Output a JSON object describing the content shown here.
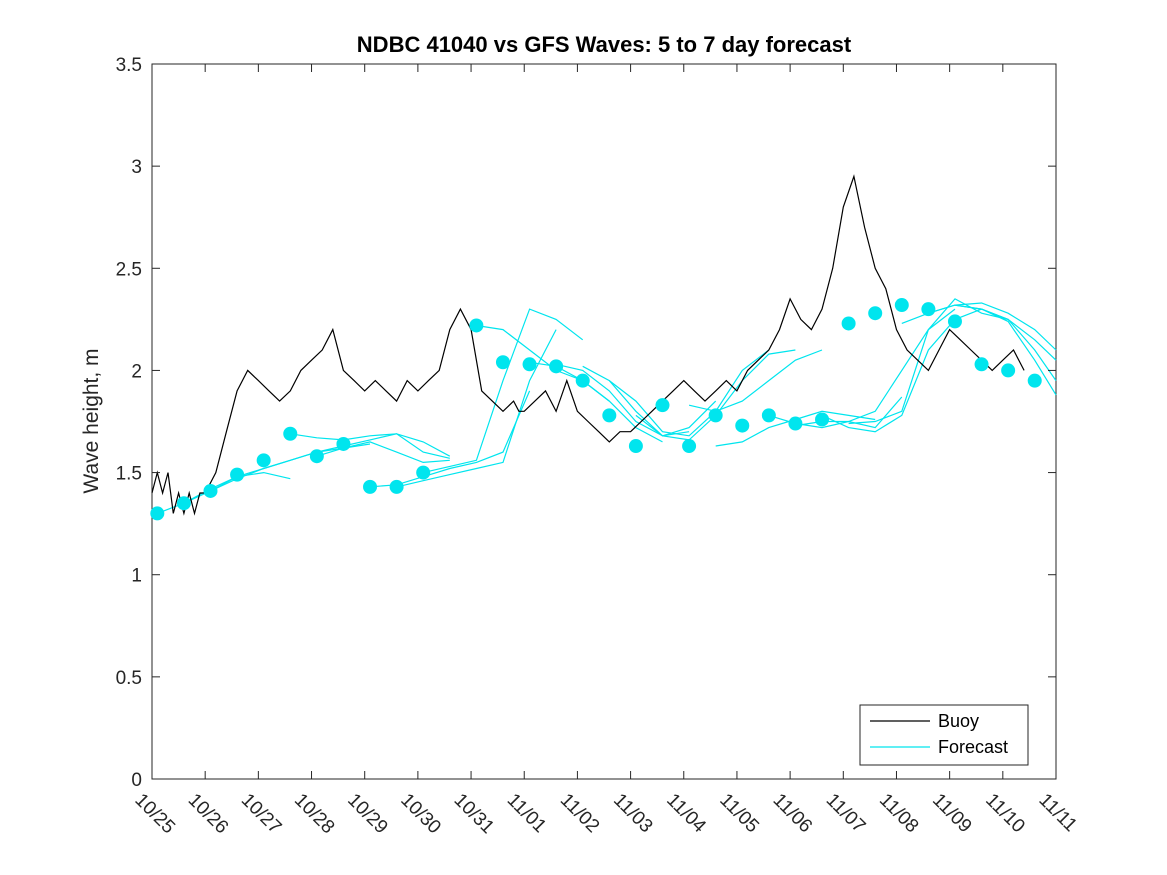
{
  "chart_data": {
    "type": "line",
    "title": "NDBC 41040 vs GFS Waves: 5 to 7 day forecast",
    "xlabel": "",
    "ylabel": "Wave height, m",
    "xlim": [
      0,
      17
    ],
    "ylim": [
      0,
      3.5
    ],
    "x_tick_labels": [
      "10/25",
      "10/26",
      "10/27",
      "10/28",
      "10/29",
      "10/30",
      "10/31",
      "11/01",
      "11/02",
      "11/03",
      "11/04",
      "11/05",
      "11/06",
      "11/07",
      "11/08",
      "11/09",
      "11/10",
      "11/11"
    ],
    "y_ticks": [
      0,
      0.5,
      1,
      1.5,
      2,
      2.5,
      3,
      3.5
    ],
    "y_tick_labels": [
      "0",
      "0.5",
      "1",
      "1.5",
      "2",
      "2.5",
      "3",
      "3.5"
    ],
    "colors": {
      "buoy": "#000000",
      "forecast": "#00e5ee",
      "axes": "#262626"
    },
    "legend": {
      "location": "bottom-right",
      "entries": [
        "Buoy",
        "Forecast"
      ]
    },
    "buoy": {
      "name": "Buoy",
      "x": [
        0,
        0.1,
        0.2,
        0.3,
        0.4,
        0.5,
        0.6,
        0.7,
        0.8,
        0.9,
        1.0,
        1.2,
        1.4,
        1.6,
        1.8,
        2.0,
        2.2,
        2.4,
        2.6,
        2.8,
        3.0,
        3.2,
        3.4,
        3.6,
        3.8,
        4.0,
        4.2,
        4.4,
        4.6,
        4.8,
        5.0,
        5.2,
        5.4,
        5.6,
        5.8,
        6.0,
        6.2,
        6.4,
        6.6,
        6.8,
        6.9,
        7.0,
        7.2,
        7.4,
        7.6,
        7.8,
        8.0,
        8.2,
        8.4,
        8.6,
        8.8,
        9.0,
        9.2,
        9.4,
        9.6,
        9.8,
        10.0,
        10.2,
        10.4,
        10.6,
        10.8,
        11.0,
        11.2,
        11.4,
        11.6,
        11.8,
        12.0,
        12.2,
        12.4,
        12.6,
        12.8,
        13.0,
        13.2,
        13.4,
        13.6,
        13.8,
        14.0,
        14.2,
        14.4,
        14.6,
        14.8,
        15.0,
        15.2,
        15.4,
        15.6,
        15.8,
        16.0,
        16.2,
        16.4
      ],
      "y": [
        1.4,
        1.5,
        1.4,
        1.5,
        1.3,
        1.4,
        1.3,
        1.4,
        1.3,
        1.4,
        1.4,
        1.5,
        1.7,
        1.9,
        2.0,
        1.95,
        1.9,
        1.85,
        1.9,
        2.0,
        2.05,
        2.1,
        2.2,
        2.0,
        1.95,
        1.9,
        1.95,
        1.9,
        1.85,
        1.95,
        1.9,
        1.95,
        2.0,
        2.2,
        2.3,
        2.2,
        1.9,
        1.85,
        1.8,
        1.85,
        1.8,
        1.8,
        1.85,
        1.9,
        1.8,
        1.95,
        1.8,
        1.75,
        1.7,
        1.65,
        1.7,
        1.7,
        1.75,
        1.8,
        1.85,
        1.9,
        1.95,
        1.9,
        1.85,
        1.9,
        1.95,
        1.9,
        2.0,
        2.05,
        2.1,
        2.2,
        2.35,
        2.25,
        2.2,
        2.3,
        2.5,
        2.8,
        2.95,
        2.7,
        2.5,
        2.4,
        2.2,
        2.1,
        2.05,
        2.0,
        2.1,
        2.2,
        2.15,
        2.1,
        2.05,
        2.0,
        2.05,
        2.1,
        2.0
      ]
    },
    "forecast": {
      "name": "Forecast",
      "markers_x": [
        0.1,
        0.6,
        1.1,
        1.6,
        2.1,
        2.6,
        3.1,
        3.6,
        4.1,
        4.6,
        5.1,
        6.1,
        6.6,
        7.1,
        7.6,
        8.1,
        8.6,
        9.1,
        9.6,
        10.1,
        10.6,
        11.1,
        11.6,
        12.1,
        12.6,
        13.1,
        13.6,
        14.1,
        14.6,
        15.1,
        15.6,
        16.1,
        16.6
      ],
      "markers_y": [
        1.3,
        1.35,
        1.41,
        1.49,
        1.56,
        1.69,
        1.58,
        1.64,
        1.43,
        1.43,
        1.5,
        2.22,
        2.04,
        2.03,
        2.02,
        1.95,
        1.78,
        1.63,
        1.83,
        1.63,
        1.78,
        1.73,
        1.78,
        1.74,
        1.76,
        2.23,
        2.28,
        2.32,
        2.3,
        2.24,
        2.03,
        2.0,
        1.95
      ],
      "segments": [
        {
          "x": [
            0.1,
            0.6,
            1.1,
            1.6,
            2.1,
            2.6
          ],
          "y": [
            1.3,
            1.35,
            1.41,
            1.48,
            1.5,
            1.47
          ]
        },
        {
          "x": [
            0.6,
            1.1,
            1.6,
            2.1,
            2.6,
            3.1,
            3.6,
            4.1
          ],
          "y": [
            1.35,
            1.42,
            1.48,
            1.52,
            1.56,
            1.6,
            1.62,
            1.64
          ]
        },
        {
          "x": [
            1.1,
            1.6,
            2.1,
            2.6,
            3.1,
            3.6,
            4.1,
            4.6,
            5.1,
            5.6
          ],
          "y": [
            1.41,
            1.47,
            1.52,
            1.56,
            1.6,
            1.63,
            1.66,
            1.69,
            1.6,
            1.57
          ]
        },
        {
          "x": [
            2.6,
            3.1,
            3.6,
            4.1,
            4.6,
            5.1,
            5.6
          ],
          "y": [
            1.69,
            1.67,
            1.66,
            1.68,
            1.69,
            1.65,
            1.58
          ]
        },
        {
          "x": [
            3.1,
            3.6,
            4.1,
            4.6,
            5.1,
            5.6
          ],
          "y": [
            1.58,
            1.62,
            1.65,
            1.6,
            1.55,
            1.56
          ]
        },
        {
          "x": [
            4.1,
            4.6,
            5.1,
            5.6,
            6.1,
            6.6,
            7.1
          ],
          "y": [
            1.43,
            1.44,
            1.48,
            1.52,
            1.55,
            1.6,
            1.9
          ]
        },
        {
          "x": [
            4.6,
            5.1,
            5.6,
            6.1,
            6.6,
            7.1,
            7.6
          ],
          "y": [
            1.43,
            1.46,
            1.49,
            1.52,
            1.55,
            1.95,
            2.2
          ]
        },
        {
          "x": [
            5.1,
            5.6,
            6.1,
            6.6,
            7.1,
            7.6,
            8.1
          ],
          "y": [
            1.5,
            1.53,
            1.56,
            1.95,
            2.3,
            2.25,
            2.15
          ]
        },
        {
          "x": [
            6.1,
            6.6,
            7.1,
            7.6,
            8.1,
            8.6
          ],
          "y": [
            2.22,
            2.2,
            2.1,
            2.0,
            1.95,
            1.85
          ]
        },
        {
          "x": [
            7.1,
            7.6,
            8.1,
            8.6,
            9.1,
            9.6
          ],
          "y": [
            2.04,
            2.02,
            1.95,
            1.85,
            1.72,
            1.65
          ]
        },
        {
          "x": [
            7.6,
            8.1,
            8.6,
            9.1,
            9.6,
            10.1
          ],
          "y": [
            2.03,
            2.0,
            1.9,
            1.75,
            1.68,
            1.7
          ]
        },
        {
          "x": [
            8.1,
            8.6,
            9.1,
            9.6,
            10.1,
            10.6
          ],
          "y": [
            2.02,
            1.95,
            1.8,
            1.68,
            1.72,
            1.85
          ]
        },
        {
          "x": [
            8.6,
            9.1,
            9.6,
            10.1,
            10.6,
            11.1,
            11.6
          ],
          "y": [
            1.95,
            1.85,
            1.7,
            1.68,
            1.8,
            2.0,
            2.1
          ]
        },
        {
          "x": [
            9.1,
            9.6,
            10.1,
            10.6,
            11.1,
            11.6,
            12.1
          ],
          "y": [
            1.78,
            1.68,
            1.66,
            1.78,
            1.95,
            2.08,
            2.1
          ]
        },
        {
          "x": [
            10.1,
            10.6,
            11.1,
            11.6,
            12.1,
            12.6
          ],
          "y": [
            1.83,
            1.8,
            1.85,
            1.95,
            2.05,
            2.1
          ]
        },
        {
          "x": [
            10.6,
            11.1,
            11.6,
            12.1,
            12.6,
            13.1,
            13.6
          ],
          "y": [
            1.63,
            1.65,
            1.72,
            1.76,
            1.8,
            1.78,
            1.76
          ]
        },
        {
          "x": [
            11.6,
            12.1,
            12.6,
            13.1,
            13.6,
            14.1
          ],
          "y": [
            1.78,
            1.74,
            1.72,
            1.75,
            1.72,
            1.87
          ]
        },
        {
          "x": [
            12.1,
            12.6,
            13.1,
            13.6,
            14.1,
            14.6,
            15.1
          ],
          "y": [
            1.73,
            1.75,
            1.75,
            1.8,
            2.0,
            2.2,
            2.3
          ]
        },
        {
          "x": [
            12.6,
            13.1,
            13.6,
            14.1,
            14.6,
            15.1,
            15.6
          ],
          "y": [
            1.78,
            1.72,
            1.7,
            1.78,
            2.1,
            2.25,
            2.3
          ]
        },
        {
          "x": [
            13.1,
            13.6,
            14.1,
            14.6,
            15.1,
            15.6,
            16.1
          ],
          "y": [
            1.74,
            1.75,
            1.8,
            2.2,
            2.35,
            2.28,
            2.25
          ]
        },
        {
          "x": [
            14.1,
            14.6,
            15.1,
            15.6,
            16.1,
            16.6,
            17.0
          ],
          "y": [
            2.23,
            2.28,
            2.32,
            2.3,
            2.25,
            2.15,
            2.05
          ]
        },
        {
          "x": [
            14.6,
            15.1,
            15.6,
            16.1,
            16.6,
            17.0
          ],
          "y": [
            2.28,
            2.32,
            2.33,
            2.28,
            2.2,
            2.1
          ]
        },
        {
          "x": [
            15.1,
            15.6,
            16.1,
            16.6,
            17.0
          ],
          "y": [
            2.32,
            2.3,
            2.25,
            2.1,
            1.95
          ]
        },
        {
          "x": [
            15.6,
            16.1,
            16.6,
            17.0
          ],
          "y": [
            2.3,
            2.24,
            2.05,
            1.88
          ]
        }
      ]
    }
  }
}
